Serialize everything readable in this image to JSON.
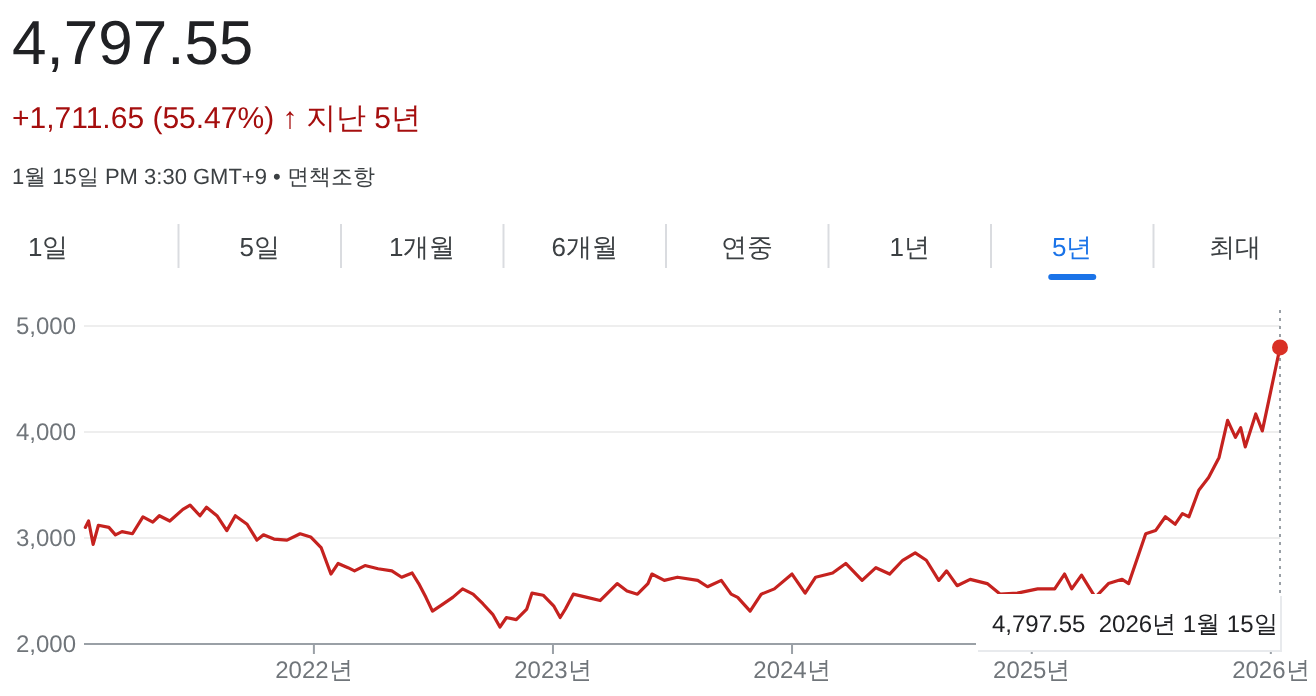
{
  "chart_data": {
    "type": "line",
    "title": "4,797.55",
    "subtitle": "+1,711.65 (55.47%) ↑ 지난 5년",
    "annotations": [
      "1월 15일 PM 3:30 GMT+9 • 면책조항",
      "1일",
      "5일",
      "1개월",
      "6개월",
      "연중",
      "1년",
      "5년",
      "최대",
      "4,797.55  2026년 1월 15일"
    ],
    "xlim": [
      "2021-01-15",
      "2026-01-15"
    ],
    "xticks": [
      {
        "value": "2022-01-01",
        "label": "2022년"
      },
      {
        "value": "2023-01-01",
        "label": "2023년"
      },
      {
        "value": "2024-01-01",
        "label": "2024년"
      },
      {
        "value": "2025-01-01",
        "label": "2025년"
      },
      {
        "value": "2026-01-01",
        "label": "2026년"
      }
    ],
    "ylim": [
      2000,
      5000
    ],
    "yticks": [
      {
        "value": 2000,
        "label": "2,000"
      },
      {
        "value": 3000,
        "label": "3,000"
      },
      {
        "value": 4000,
        "label": "4,000"
      },
      {
        "value": 5000,
        "label": "5,000"
      }
    ],
    "grid": "y",
    "marker": "none",
    "line_style": "solid",
    "ref_lines": [
      {
        "axis": "x",
        "value": "2026-01-15",
        "label": null,
        "color": "#9aa0a6",
        "line_style": "dotted"
      }
    ],
    "series": [
      {
        "color": "#c5221f",
        "x": [
          "2021-01-17",
          "2021-01-22",
          "2021-01-29",
          "2021-02-06",
          "2021-02-22",
          "2021-03-04",
          "2021-03-14",
          "2021-03-30",
          "2021-04-15",
          "2021-04-30",
          "2021-05-10",
          "2021-05-26",
          "2021-06-15",
          "2021-06-26",
          "2021-07-11",
          "2021-07-21",
          "2021-08-06",
          "2021-08-21",
          "2021-09-03",
          "2021-09-21",
          "2021-10-06",
          "2021-10-16",
          "2021-11-01",
          "2021-11-21",
          "2021-12-11",
          "2021-12-27",
          "2022-01-12",
          "2022-01-27",
          "2022-02-07",
          "2022-02-22",
          "2022-03-04",
          "2022-03-20",
          "2022-04-09",
          "2022-04-30",
          "2022-05-15",
          "2022-05-31",
          "2022-06-10",
          "2022-06-21",
          "2022-07-01",
          "2022-07-13",
          "2022-08-01",
          "2022-08-16",
          "2022-09-01",
          "2022-09-16",
          "2022-10-01",
          "2022-10-12",
          "2022-10-22",
          "2022-11-06",
          "2022-11-22",
          "2022-11-30",
          "2022-12-17",
          "2023-01-02",
          "2023-01-12",
          "2023-01-20",
          "2023-02-01",
          "2023-02-22",
          "2023-03-14",
          "2023-04-09",
          "2023-04-24",
          "2023-05-10",
          "2023-05-26",
          "2023-06-01",
          "2023-06-20",
          "2023-07-10",
          "2023-08-10",
          "2023-08-25",
          "2023-09-15",
          "2023-09-30",
          "2023-10-10",
          "2023-10-29",
          "2023-11-15",
          "2023-12-05",
          "2024-01-01",
          "2024-01-21",
          "2024-02-06",
          "2024-03-03",
          "2024-03-23",
          "2024-04-17",
          "2024-05-08",
          "2024-05-29",
          "2024-06-18",
          "2024-07-07",
          "2024-07-24",
          "2024-08-12",
          "2024-08-24",
          "2024-09-09",
          "2024-09-29",
          "2024-10-25",
          "2024-11-14",
          "2024-12-10",
          "2025-01-10",
          "2025-02-05",
          "2025-02-20",
          "2025-03-03",
          "2025-03-18",
          "2025-04-08",
          "2025-04-28",
          "2025-05-19",
          "2025-05-29",
          "2025-06-24",
          "2025-07-09",
          "2025-07-24",
          "2025-08-08",
          "2025-08-19",
          "2025-08-29",
          "2025-09-13",
          "2025-09-28",
          "2025-10-14",
          "2025-10-27",
          "2025-11-08",
          "2025-11-16",
          "2025-11-23",
          "2025-12-09",
          "2025-12-19",
          "2025-12-29",
          "2026-01-15"
        ],
        "values": [
          3100,
          3160,
          2940,
          3120,
          3100,
          3030,
          3060,
          3040,
          3200,
          3150,
          3210,
          3160,
          3270,
          3310,
          3210,
          3290,
          3210,
          3070,
          3210,
          3130,
          2980,
          3030,
          2990,
          2980,
          3040,
          3010,
          2910,
          2660,
          2760,
          2720,
          2690,
          2740,
          2710,
          2690,
          2630,
          2670,
          2570,
          2440,
          2310,
          2360,
          2440,
          2520,
          2470,
          2380,
          2280,
          2160,
          2250,
          2230,
          2330,
          2480,
          2460,
          2360,
          2250,
          2330,
          2470,
          2440,
          2410,
          2570,
          2500,
          2470,
          2570,
          2660,
          2600,
          2630,
          2600,
          2540,
          2600,
          2470,
          2440,
          2310,
          2470,
          2520,
          2660,
          2480,
          2630,
          2670,
          2760,
          2600,
          2720,
          2660,
          2790,
          2860,
          2790,
          2600,
          2690,
          2550,
          2610,
          2570,
          2470,
          2480,
          2520,
          2520,
          2660,
          2520,
          2650,
          2440,
          2570,
          2610,
          2570,
          3040,
          3070,
          3200,
          3130,
          3230,
          3200,
          3450,
          3570,
          3760,
          4110,
          3950,
          4040,
          3860,
          4170,
          4010,
          4300,
          4797.55
        ]
      },
      {
        "type": "scatter",
        "marker": "circle",
        "color": "#d93025",
        "x": [
          "2026-01-15"
        ],
        "values": [
          4797.55
        ]
      }
    ]
  }
}
